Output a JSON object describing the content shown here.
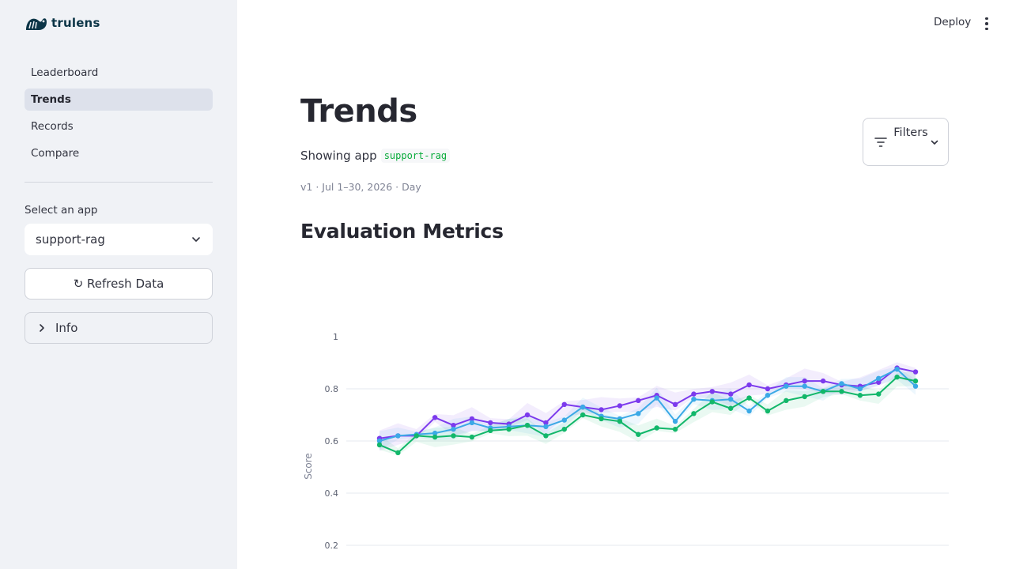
{
  "sidebar": {
    "logo_text": "trulens",
    "nav": [
      {
        "label": "Leaderboard",
        "active": false
      },
      {
        "label": "Trends",
        "active": true
      },
      {
        "label": "Records",
        "active": false
      },
      {
        "label": "Compare",
        "active": false
      }
    ],
    "select_label": "Select an app",
    "select_value": "support-rag",
    "refresh_label": "↻ Refresh Data",
    "info_label": "Info"
  },
  "header": {
    "deploy_label": "Deploy"
  },
  "main": {
    "title": "Trends",
    "showing_prefix": "Showing app",
    "app_code": "support-rag",
    "meta": "v1 · Jul 1–30, 2026 · Day",
    "filters_label": "Filters",
    "section_title": "Evaluation Metrics"
  },
  "colors": {
    "purple": "#7c3aed",
    "blue": "#3ba9e6",
    "green": "#12b76a",
    "accent_code": "#09ab3b"
  },
  "chart_data": {
    "type": "line",
    "ylabel": "Score",
    "ylim": [
      0.2,
      1.0
    ],
    "yticks": [
      1,
      0.8,
      0.6,
      0.4,
      0.2
    ],
    "x": [
      1,
      2,
      3,
      4,
      5,
      6,
      7,
      8,
      9,
      10,
      11,
      12,
      13,
      14,
      15,
      16,
      17,
      18,
      19,
      20,
      21,
      22,
      23,
      24,
      25,
      26,
      27,
      28,
      29,
      30
    ],
    "series": [
      {
        "color": "#7c3aed",
        "values": [
          0.61,
          0.62,
          0.62,
          0.69,
          0.66,
          0.685,
          0.67,
          0.665,
          0.7,
          0.67,
          0.74,
          0.73,
          0.72,
          0.735,
          0.755,
          0.775,
          0.74,
          0.78,
          0.79,
          0.78,
          0.815,
          0.8,
          0.815,
          0.83,
          0.83,
          0.815,
          0.81,
          0.825,
          0.88,
          0.865
        ],
        "band": 0.03
      },
      {
        "color": "#3ba9e6",
        "values": [
          0.6,
          0.62,
          0.625,
          0.63,
          0.645,
          0.67,
          0.65,
          0.655,
          0.66,
          0.655,
          0.68,
          0.73,
          0.695,
          0.685,
          0.705,
          0.765,
          0.675,
          0.76,
          0.755,
          0.76,
          0.715,
          0.775,
          0.81,
          0.81,
          0.79,
          0.82,
          0.8,
          0.84,
          0.875,
          0.81
        ],
        "band": 0.025
      },
      {
        "color": "#12b76a",
        "values": [
          0.585,
          0.555,
          0.62,
          0.615,
          0.62,
          0.615,
          0.64,
          0.645,
          0.66,
          0.62,
          0.645,
          0.7,
          0.685,
          0.675,
          0.625,
          0.65,
          0.645,
          0.705,
          0.75,
          0.725,
          0.765,
          0.715,
          0.755,
          0.77,
          0.79,
          0.79,
          0.775,
          0.78,
          0.845,
          0.83
        ],
        "band": 0.025
      }
    ]
  }
}
